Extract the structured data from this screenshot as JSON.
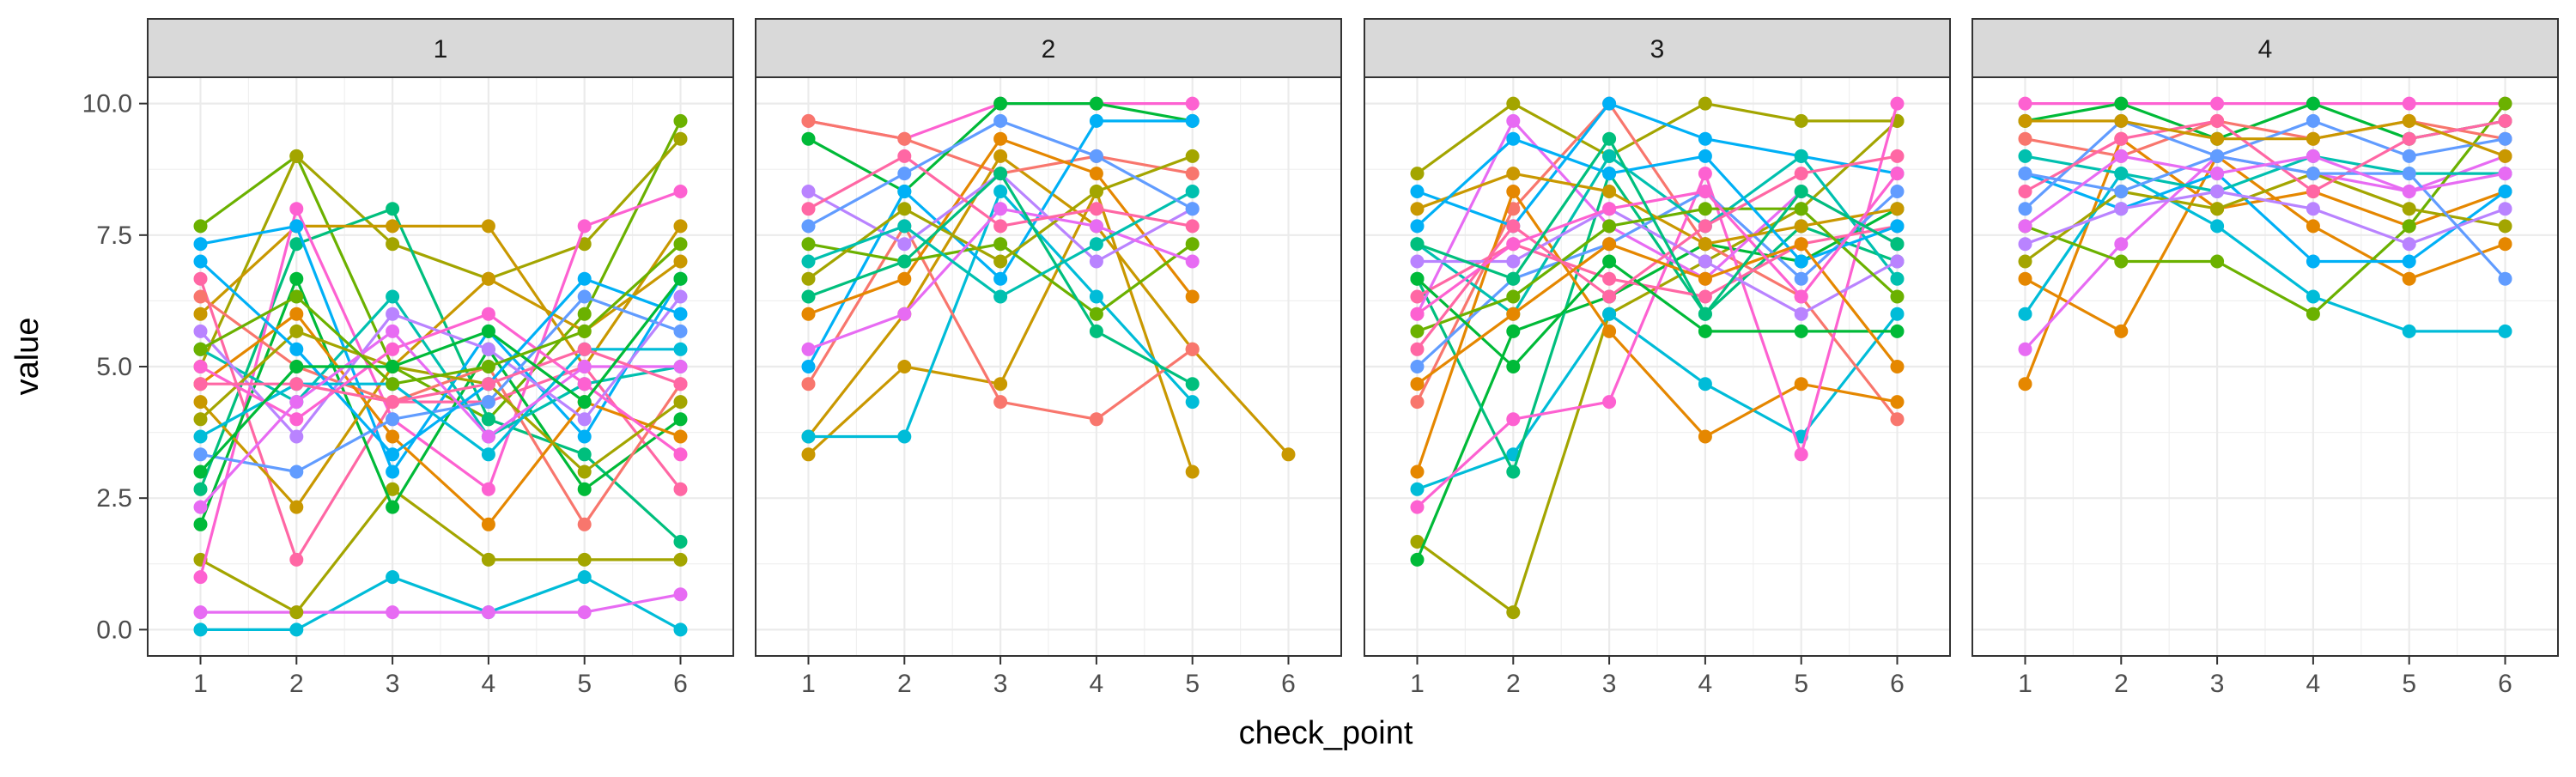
{
  "chart_data": {
    "type": "line",
    "subtype": "faceted line chart with points (one line per individual)",
    "title": "",
    "xlabel": "check_point",
    "ylabel": "value",
    "x_ticks": [
      1,
      2,
      3,
      4,
      5,
      6
    ],
    "y_ticks": [
      0.0,
      2.5,
      5.0,
      7.5,
      10.0
    ],
    "y_tick_labels": [
      "0.0",
      "2.5",
      "5.0",
      "7.5",
      "10.0"
    ],
    "xlim": [
      0.45,
      6.55
    ],
    "ylim": [
      -0.5,
      10.5
    ],
    "grid": true,
    "legend": "none",
    "palette": [
      "#F8766D",
      "#E58700",
      "#C99800",
      "#A3A500",
      "#6BB100",
      "#00BA38",
      "#00BF7D",
      "#00C0AF",
      "#00BCD8",
      "#00B0F6",
      "#619CFF",
      "#B983FF",
      "#E76BF3",
      "#FD61D1",
      "#FF67A4"
    ],
    "facets": [
      {
        "label": "1",
        "series": [
          {
            "values": [
              0.0,
              0.0,
              1.0,
              0.33,
              1.0,
              0.0
            ],
            "color": "#00BCD8"
          },
          {
            "values": [
              0.33,
              0.33,
              0.33,
              0.33,
              0.33,
              0.67
            ],
            "color": "#E76BF3"
          },
          {
            "values": [
              1.33,
              0.33,
              2.67,
              1.33,
              1.33,
              1.33
            ],
            "color": "#A3A500"
          },
          {
            "values": [
              7.67,
              9.0,
              5.0,
              4.0,
              6.0,
              9.67
            ],
            "color": "#6BB100"
          },
          {
            "values": [
              5.0,
              9.0,
              7.33,
              6.67,
              7.33,
              9.33
            ],
            "color": "#A3A500"
          },
          {
            "values": [
              2.67,
              7.33,
              8.0,
              4.0,
              3.33,
              1.67
            ],
            "color": "#00BF7D"
          },
          {
            "values": [
              6.0,
              7.67,
              7.67,
              7.67,
              5.0,
              7.67
            ],
            "color": "#C99800"
          },
          {
            "values": [
              1.0,
              8.0,
              4.0,
              2.67,
              7.67,
              8.33
            ],
            "color": "#FD61D1"
          },
          {
            "values": [
              7.33,
              7.67,
              3.0,
              5.67,
              3.67,
              6.67
            ],
            "color": "#00B0F6"
          },
          {
            "values": [
              6.67,
              1.33,
              4.33,
              4.33,
              5.0,
              2.67
            ],
            "color": "#FF67A4"
          },
          {
            "values": [
              2.0,
              6.67,
              2.33,
              5.33,
              2.67,
              4.0
            ],
            "color": "#00BA38"
          },
          {
            "values": [
              4.33,
              2.33,
              5.0,
              6.67,
              5.67,
              7.0
            ],
            "color": "#C99800"
          },
          {
            "values": [
              5.33,
              4.33,
              6.33,
              3.67,
              4.67,
              5.0
            ],
            "color": "#00C0AF"
          },
          {
            "values": [
              6.33,
              5.0,
              4.33,
              5.0,
              2.0,
              4.67
            ],
            "color": "#F8766D"
          },
          {
            "values": [
              4.67,
              6.0,
              3.67,
              2.0,
              4.33,
              3.67
            ],
            "color": "#E58700"
          },
          {
            "values": [
              3.33,
              3.0,
              4.0,
              4.33,
              6.33,
              5.67
            ],
            "color": "#619CFF"
          },
          {
            "values": [
              5.67,
              3.67,
              6.0,
              5.33,
              4.0,
              6.33
            ],
            "color": "#B983FF"
          },
          {
            "values": [
              4.0,
              5.67,
              5.0,
              4.67,
              3.0,
              4.33
            ],
            "color": "#A3A500"
          },
          {
            "values": [
              3.67,
              4.67,
              4.67,
              3.33,
              5.33,
              5.33
            ],
            "color": "#00BCD8"
          },
          {
            "values": [
              5.0,
              4.0,
              5.33,
              6.0,
              4.67,
              3.33
            ],
            "color": "#FD61D1"
          },
          {
            "values": [
              7.0,
              5.33,
              3.33,
              4.67,
              6.67,
              6.0
            ],
            "color": "#00B0F6"
          },
          {
            "values": [
              2.33,
              4.33,
              5.67,
              3.67,
              5.0,
              5.0
            ],
            "color": "#E76BF3"
          },
          {
            "values": [
              4.67,
              4.67,
              4.33,
              4.67,
              5.33,
              4.67
            ],
            "color": "#FF67A4"
          },
          {
            "values": [
              3.0,
              5.0,
              5.0,
              5.67,
              4.33,
              6.67
            ],
            "color": "#00BA38"
          },
          {
            "values": [
              5.33,
              6.33,
              4.67,
              5.0,
              5.67,
              7.33
            ],
            "color": "#6BB100"
          }
        ]
      },
      {
        "label": "2",
        "series": [
          {
            "values": [
              3.33,
              5.0,
              4.67,
              8.33,
              3.0,
              null
            ],
            "color": "#C99800"
          },
          {
            "values": [
              3.67,
              6.0,
              9.0,
              7.67,
              5.33,
              3.33
            ],
            "color": "#C99800"
          },
          {
            "values": [
              3.67,
              3.67,
              8.33,
              6.33,
              4.33,
              null
            ],
            "color": "#00BCD8"
          },
          {
            "values": [
              4.67,
              7.67,
              4.33,
              4.0,
              5.33,
              null
            ],
            "color": "#F8766D"
          },
          {
            "values": [
              9.67,
              9.33,
              10.0,
              10.0,
              10.0,
              null
            ],
            "color": "#FD61D1"
          },
          {
            "values": [
              9.67,
              9.33,
              8.67,
              9.0,
              8.67,
              null
            ],
            "color": "#F8766D"
          },
          {
            "values": [
              9.33,
              8.33,
              10.0,
              10.0,
              9.67,
              null
            ],
            "color": "#00BA38"
          },
          {
            "values": [
              5.0,
              8.33,
              6.67,
              9.67,
              9.67,
              null
            ],
            "color": "#00B0F6"
          },
          {
            "values": [
              6.0,
              6.67,
              9.33,
              8.67,
              6.33,
              null
            ],
            "color": "#E58700"
          },
          {
            "values": [
              7.33,
              7.0,
              7.33,
              6.0,
              7.33,
              null
            ],
            "color": "#6BB100"
          },
          {
            "values": [
              8.33,
              7.33,
              8.67,
              7.0,
              8.0,
              null
            ],
            "color": "#B983FF"
          },
          {
            "values": [
              6.67,
              8.0,
              7.0,
              8.33,
              9.0,
              null
            ],
            "color": "#A3A500"
          },
          {
            "values": [
              5.33,
              6.0,
              8.0,
              7.67,
              7.0,
              null
            ],
            "color": "#E76BF3"
          },
          {
            "values": [
              7.0,
              7.67,
              6.33,
              7.33,
              8.33,
              null
            ],
            "color": "#00C0AF"
          },
          {
            "values": [
              8.0,
              9.0,
              7.67,
              8.0,
              7.67,
              null
            ],
            "color": "#FF67A4"
          },
          {
            "values": [
              6.33,
              7.0,
              8.67,
              5.67,
              4.67,
              null
            ],
            "color": "#00BF7D"
          },
          {
            "values": [
              7.67,
              8.67,
              9.67,
              9.0,
              8.0,
              null
            ],
            "color": "#619CFF"
          }
        ]
      },
      {
        "label": "3",
        "series": [
          {
            "values": [
              1.67,
              0.33,
              6.0,
              7.0,
              8.0,
              9.67
            ],
            "color": "#A3A500"
          },
          {
            "values": [
              1.33,
              5.67,
              6.33,
              7.33,
              7.0,
              8.0
            ],
            "color": "#00BA38"
          },
          {
            "values": [
              8.67,
              10.0,
              9.0,
              10.0,
              9.67,
              9.67
            ],
            "color": "#A3A500"
          },
          {
            "values": [
              2.67,
              3.33,
              6.0,
              4.67,
              3.67,
              6.0
            ],
            "color": "#00BCD8"
          },
          {
            "values": [
              4.33,
              8.0,
              10.0,
              7.33,
              6.33,
              4.0
            ],
            "color": "#F8766D"
          },
          {
            "values": [
              6.67,
              3.0,
              8.67,
              6.0,
              7.67,
              7.0
            ],
            "color": "#00BF7D"
          },
          {
            "values": [
              3.0,
              8.33,
              5.67,
              3.67,
              4.67,
              4.33
            ],
            "color": "#E58700"
          },
          {
            "values": [
              8.33,
              7.67,
              10.0,
              9.33,
              9.0,
              8.67
            ],
            "color": "#00B0F6"
          },
          {
            "values": [
              2.33,
              4.0,
              4.33,
              8.67,
              3.33,
              10.0
            ],
            "color": "#FD61D1"
          },
          {
            "values": [
              6.0,
              9.67,
              7.67,
              6.67,
              8.33,
              7.33
            ],
            "color": "#E76BF3"
          },
          {
            "values": [
              5.0,
              6.67,
              7.33,
              8.33,
              6.67,
              8.33
            ],
            "color": "#619CFF"
          },
          {
            "values": [
              7.33,
              6.0,
              9.0,
              7.67,
              9.0,
              6.67
            ],
            "color": "#00C0AF"
          },
          {
            "values": [
              6.33,
              7.33,
              6.67,
              6.33,
              7.33,
              7.67
            ],
            "color": "#FF67A4"
          },
          {
            "values": [
              7.0,
              7.0,
              8.0,
              7.0,
              6.0,
              7.0
            ],
            "color": "#B983FF"
          },
          {
            "values": [
              5.67,
              6.33,
              7.67,
              8.0,
              8.0,
              6.33
            ],
            "color": "#6BB100"
          },
          {
            "values": [
              8.0,
              8.67,
              8.33,
              7.33,
              7.67,
              8.0
            ],
            "color": "#C99800"
          },
          {
            "values": [
              6.67,
              5.0,
              7.0,
              5.67,
              5.67,
              5.67
            ],
            "color": "#00BA38"
          },
          {
            "values": [
              5.33,
              7.67,
              6.33,
              7.67,
              8.67,
              9.0
            ],
            "color": "#FF67A4"
          },
          {
            "values": [
              7.67,
              9.33,
              8.67,
              9.0,
              7.0,
              7.67
            ],
            "color": "#00B0F6"
          },
          {
            "values": [
              4.67,
              6.0,
              7.33,
              6.67,
              7.33,
              5.0
            ],
            "color": "#E58700"
          },
          {
            "values": [
              6.0,
              7.33,
              8.0,
              8.33,
              6.33,
              8.67
            ],
            "color": "#FD61D1"
          },
          {
            "values": [
              7.33,
              6.67,
              9.33,
              6.0,
              8.33,
              7.33
            ],
            "color": "#00BF7D"
          }
        ]
      },
      {
        "label": "4",
        "series": [
          {
            "values": [
              4.67,
              9.33,
              8.0,
              8.33,
              7.67,
              8.33
            ],
            "color": "#E58700"
          },
          {
            "values": [
              6.67,
              5.67,
              9.0,
              7.67,
              6.67,
              7.33
            ],
            "color": "#E58700"
          },
          {
            "values": [
              6.0,
              8.67,
              7.67,
              6.33,
              5.67,
              5.67
            ],
            "color": "#00BCD8"
          },
          {
            "values": [
              5.33,
              7.33,
              9.0,
              8.67,
              8.33,
              9.0
            ],
            "color": "#E76BF3"
          },
          {
            "values": [
              10.0,
              10.0,
              10.0,
              10.0,
              10.0,
              10.0
            ],
            "color": "#FD61D1"
          },
          {
            "values": [
              9.67,
              10.0,
              9.33,
              10.0,
              9.33,
              9.67
            ],
            "color": "#00BA38"
          },
          {
            "values": [
              7.67,
              7.0,
              7.0,
              6.0,
              7.67,
              10.0
            ],
            "color": "#6BB100"
          },
          {
            "values": [
              8.67,
              8.0,
              8.67,
              7.0,
              7.0,
              8.33
            ],
            "color": "#00B0F6"
          },
          {
            "values": [
              9.33,
              9.0,
              9.67,
              9.33,
              9.67,
              9.33
            ],
            "color": "#F8766D"
          },
          {
            "values": [
              7.0,
              8.33,
              8.0,
              8.67,
              8.0,
              7.67
            ],
            "color": "#A3A500"
          },
          {
            "values": [
              8.0,
              9.67,
              9.0,
              9.67,
              9.0,
              9.33
            ],
            "color": "#619CFF"
          },
          {
            "values": [
              9.0,
              8.67,
              8.33,
              9.0,
              8.67,
              8.67
            ],
            "color": "#00C0AF"
          },
          {
            "values": [
              8.33,
              9.33,
              9.67,
              8.33,
              9.33,
              9.67
            ],
            "color": "#FF67A4"
          },
          {
            "values": [
              7.33,
              8.0,
              8.33,
              8.0,
              7.33,
              8.0
            ],
            "color": "#B983FF"
          },
          {
            "values": [
              9.67,
              9.67,
              9.33,
              9.33,
              9.67,
              9.0
            ],
            "color": "#C99800"
          },
          {
            "values": [
              8.67,
              8.33,
              9.0,
              8.67,
              8.67,
              6.67
            ],
            "color": "#619CFF"
          },
          {
            "values": [
              7.67,
              9.0,
              8.67,
              9.0,
              8.33,
              8.67
            ],
            "color": "#E76BF3"
          }
        ]
      }
    ]
  }
}
